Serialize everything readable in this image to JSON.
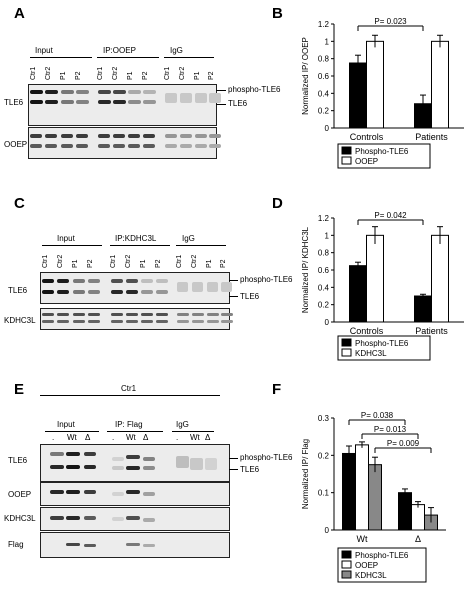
{
  "panels": {
    "A": {
      "letter": "A",
      "groups": [
        "Input",
        "IP:OOEP",
        "IgG"
      ],
      "lanes": [
        "Ctr1",
        "Ctr2",
        "P1",
        "P2",
        "Ctr1",
        "Ctr2",
        "P1",
        "P2",
        "Ctr1",
        "Ctr2",
        "P1",
        "P2"
      ],
      "rows": [
        "TLE6",
        "OOEP"
      ],
      "markers": [
        "phospho-TLE6",
        "TLE6"
      ]
    },
    "C": {
      "letter": "C",
      "groups": [
        "Input",
        "IP:KDHC3L",
        "IgG"
      ],
      "lanes": [
        "Ctr1",
        "Ctr2",
        "P1",
        "P2",
        "Ctr1",
        "Ctr2",
        "P1",
        "P2",
        "Ctr1",
        "Ctr2",
        "P1",
        "P2"
      ],
      "rows": [
        "TLE6",
        "KDHC3L"
      ],
      "markers": [
        "phospho-TLE6",
        "TLE6"
      ]
    },
    "E": {
      "letter": "E",
      "title": "Ctr1",
      "groups": [
        "Input",
        "IP: Flag",
        "IgG"
      ],
      "lanes": [
        ".",
        "Wt",
        "Δ",
        ".",
        "Wt",
        "Δ",
        ".",
        "Wt",
        "Δ"
      ],
      "rows": [
        "TLE6",
        "OOEP",
        "KDHC3L",
        "Flag"
      ],
      "markers": [
        "phospho-TLE6",
        "TLE6"
      ]
    }
  },
  "chart_data": [
    {
      "letter": "B",
      "type": "bar",
      "categories": [
        "Controls",
        "Patients"
      ],
      "series": [
        {
          "name": "Phospho-TLE6",
          "values": [
            0.75,
            0.28
          ],
          "errors": [
            0.09,
            0.1
          ],
          "color": "#000000"
        },
        {
          "name": "OOEP",
          "values": [
            1.0,
            1.0
          ],
          "errors": [
            0.07,
            0.07
          ],
          "color": "#ffffff"
        }
      ],
      "ylabel": "Normalized IP/ OOEP",
      "ylim": [
        0,
        1.2
      ],
      "yticks": [
        "0",
        "0.2",
        "0.4",
        "0.6",
        "0.8",
        "1",
        "1.2"
      ],
      "annotations": [
        {
          "text": "P= 0.023",
          "from": 0,
          "to": 1
        }
      ],
      "legend": "bottom"
    },
    {
      "letter": "D",
      "type": "bar",
      "categories": [
        "Controls",
        "Patients"
      ],
      "series": [
        {
          "name": "Phospho-TLE6",
          "values": [
            0.65,
            0.3
          ],
          "errors": [
            0.04,
            0.02
          ],
          "color": "#000000"
        },
        {
          "name": "KDHC3L",
          "values": [
            1.0,
            1.0
          ],
          "errors": [
            0.1,
            0.1
          ],
          "color": "#ffffff"
        }
      ],
      "ylabel": "Normalized IP/ KDHC3L",
      "ylim": [
        0,
        1.2
      ],
      "yticks": [
        "0",
        "0.2",
        "0.4",
        "0.6",
        "0.8",
        "1",
        "1.2"
      ],
      "annotations": [
        {
          "text": "P= 0.042",
          "from": 0,
          "to": 1
        }
      ],
      "legend": "bottom"
    },
    {
      "letter": "F",
      "type": "bar",
      "categories": [
        "Wt",
        "Δ"
      ],
      "series": [
        {
          "name": "Phospho-TLE6",
          "values": [
            0.205,
            0.1
          ],
          "errors": [
            0.02,
            0.01
          ],
          "color": "#000000"
        },
        {
          "name": "OOEP",
          "values": [
            0.228,
            0.068
          ],
          "errors": [
            0.008,
            0.008
          ],
          "color": "#ffffff"
        },
        {
          "name": "KDHC3L",
          "values": [
            0.175,
            0.04
          ],
          "errors": [
            0.02,
            0.02
          ],
          "color": "#888888"
        }
      ],
      "ylabel": "Normalized  IP/ Flag",
      "ylim": [
        0,
        0.3
      ],
      "yticks": [
        "0",
        "0.1",
        "0.2",
        "0.3"
      ],
      "annotations": [
        {
          "text": "P= 0.038",
          "from": 0,
          "to": 0
        },
        {
          "text": "P= 0.013",
          "from": 1,
          "to": 1
        },
        {
          "text": "P= 0.009",
          "from": 2,
          "to": 2
        }
      ],
      "legend": "bottom"
    }
  ]
}
